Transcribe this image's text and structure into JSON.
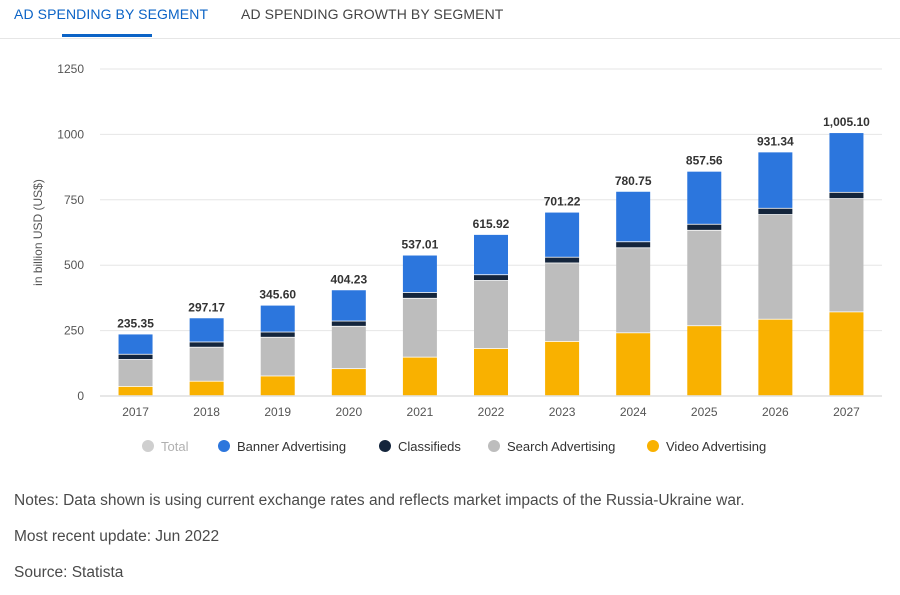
{
  "tabs": [
    {
      "label": "AD SPENDING BY SEGMENT",
      "active": true
    },
    {
      "label": "AD SPENDING GROWTH BY SEGMENT",
      "active": false
    }
  ],
  "chart_data": {
    "type": "bar",
    "stacked": true,
    "ylabel": "in billion USD (US$)",
    "ylim": [
      0,
      1250
    ],
    "yticks": [
      0,
      250,
      500,
      750,
      1000,
      1250
    ],
    "categories": [
      "2017",
      "2018",
      "2019",
      "2020",
      "2021",
      "2022",
      "2023",
      "2024",
      "2025",
      "2026",
      "2027"
    ],
    "totals": [
      235.35,
      297.17,
      345.6,
      404.23,
      537.01,
      615.92,
      701.22,
      780.75,
      857.56,
      931.34,
      1005.1
    ],
    "total_labels": [
      "235.35",
      "297.17",
      "345.60",
      "404.23",
      "537.01",
      "615.92",
      "701.22",
      "780.75",
      "857.56",
      "931.34",
      "1,005.10"
    ],
    "series": [
      {
        "name": "Video Advertising",
        "color": "#f9b100",
        "values": [
          35,
          55,
          75,
          103,
          147,
          180,
          207,
          240,
          267,
          292,
          320
        ]
      },
      {
        "name": "Search Advertising",
        "color": "#bdbdbd",
        "values": [
          103,
          130,
          148,
          162,
          225,
          260,
          300,
          325,
          365,
          400,
          433
        ]
      },
      {
        "name": "Classifieds",
        "color": "#14253c",
        "values": [
          20,
          20,
          20,
          20,
          22,
          22,
          22,
          23,
          23,
          24,
          24
        ]
      },
      {
        "name": "Banner Advertising",
        "color": "#2c76dd",
        "values": [
          77.35,
          92.17,
          102.6,
          119.23,
          143.01,
          153.92,
          172.22,
          192.75,
          202.56,
          215.34,
          228.1
        ]
      }
    ],
    "legend": [
      {
        "name": "Total",
        "color": "#cfcfcf",
        "muted": true
      },
      {
        "name": "Banner Advertising",
        "color": "#2c76dd"
      },
      {
        "name": "Classifieds",
        "color": "#14253c"
      },
      {
        "name": "Search Advertising",
        "color": "#bdbdbd"
      },
      {
        "name": "Video Advertising",
        "color": "#f9b100"
      }
    ]
  },
  "notes": {
    "text": "Notes: Data shown is using current exchange rates and reflects market impacts of the Russia-Ukraine war.",
    "update": "Most recent update: Jun 2022",
    "source": "Source: Statista"
  }
}
